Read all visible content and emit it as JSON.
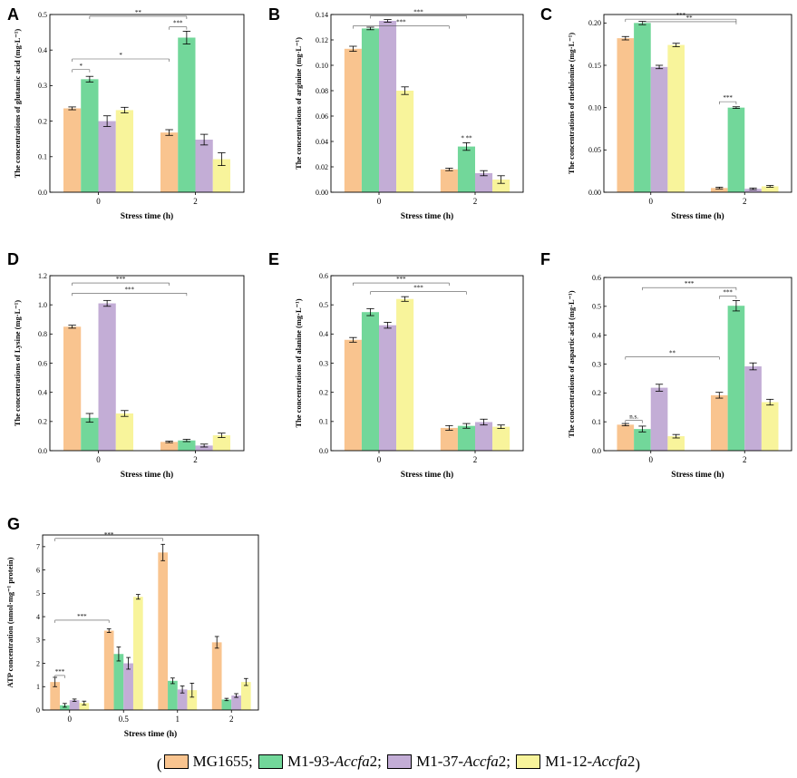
{
  "colors": {
    "MG1655": "#F9C48F",
    "M1-93-Accfa2": "#72D79A",
    "M1-37-Accfa2": "#C3ADD6",
    "M1-12-Accfa2": "#F8F49B"
  },
  "legend": {
    "open": "(",
    "close": ")",
    "items": [
      {
        "name": "MG1655",
        "plain": "MG1655",
        "italic": "",
        "suffix": "",
        "sep": ";"
      },
      {
        "name": "M1-93-Accfa2",
        "plain": "M1-93-",
        "italic": "Accfa",
        "suffix": "2",
        "sep": ";"
      },
      {
        "name": "M1-37-Accfa2",
        "plain": "M1-37-",
        "italic": "Accfa",
        "suffix": "2",
        "sep": ";"
      },
      {
        "name": "M1-12-Accfa2",
        "plain": "M1-12-",
        "italic": "Accfa",
        "suffix": "2",
        "sep": ""
      }
    ]
  },
  "chart_data": [
    {
      "panel": "A",
      "type": "bar",
      "ylabel": "The concentrations of glutamic acid (mg·L⁻¹)",
      "xlabel": "Stress time (h)",
      "categories": [
        "0",
        "2"
      ],
      "ylim": [
        0,
        0.5
      ],
      "yticks": [
        0.0,
        0.1,
        0.2,
        0.3,
        0.4,
        0.5
      ],
      "tick_decimals": 1,
      "series": [
        {
          "name": "MG1655",
          "values": [
            0.236,
            0.168
          ],
          "errors": [
            0.004,
            0.008
          ]
        },
        {
          "name": "M1-93-Accfa2",
          "values": [
            0.318,
            0.435
          ],
          "errors": [
            0.008,
            0.018
          ]
        },
        {
          "name": "M1-37-Accfa2",
          "values": [
            0.2,
            0.148
          ],
          "errors": [
            0.015,
            0.015
          ]
        },
        {
          "name": "M1-12-Accfa2",
          "values": [
            0.231,
            0.093
          ],
          "errors": [
            0.008,
            0.018
          ]
        }
      ],
      "annotations": [
        {
          "text": "*",
          "from": [
            0,
            0
          ],
          "to": [
            0,
            1
          ],
          "level": 0.345
        },
        {
          "text": "*",
          "from": [
            0,
            0
          ],
          "to": [
            1,
            0
          ],
          "level": 0.375
        },
        {
          "text": "***",
          "from": [
            1,
            0
          ],
          "to": [
            1,
            1
          ],
          "level": 0.465
        },
        {
          "text": "**",
          "from": [
            0,
            1
          ],
          "to": [
            1,
            1
          ],
          "level": 0.495
        }
      ]
    },
    {
      "panel": "B",
      "type": "bar",
      "ylabel": "The concentrations of arginine (mg·L⁻¹)",
      "xlabel": "Stress time (h)",
      "categories": [
        "0",
        "2"
      ],
      "ylim": [
        0,
        0.14
      ],
      "yticks": [
        0.0,
        0.02,
        0.04,
        0.06,
        0.08,
        0.1,
        0.12,
        0.14
      ],
      "tick_decimals": 2,
      "series": [
        {
          "name": "MG1655",
          "values": [
            0.113,
            0.018
          ],
          "errors": [
            0.002,
            0.001
          ]
        },
        {
          "name": "M1-93-Accfa2",
          "values": [
            0.129,
            0.036
          ],
          "errors": [
            0.001,
            0.003
          ]
        },
        {
          "name": "M1-37-Accfa2",
          "values": [
            0.135,
            0.015
          ],
          "errors": [
            0.001,
            0.002
          ]
        },
        {
          "name": "M1-12-Accfa2",
          "values": [
            0.08,
            0.01
          ],
          "errors": [
            0.003,
            0.003
          ]
        }
      ],
      "annotations": [
        {
          "text": "***",
          "from": [
            0,
            0
          ],
          "to": [
            1,
            0
          ],
          "level": 0.131
        },
        {
          "text": "***",
          "from": [
            0,
            1
          ],
          "to": [
            1,
            1
          ],
          "level": 0.139
        },
        {
          "text": "* **",
          "at": [
            1,
            1
          ],
          "level": 0.041
        }
      ]
    },
    {
      "panel": "C",
      "type": "bar",
      "ylabel": "The concentrations of methionine (mg·L⁻¹)",
      "xlabel": "Stress time (h)",
      "categories": [
        "0",
        "2"
      ],
      "ylim": [
        0,
        0.21
      ],
      "yticks": [
        0.0,
        0.05,
        0.1,
        0.15,
        0.2
      ],
      "tick_decimals": 2,
      "series": [
        {
          "name": "MG1655",
          "values": [
            0.182,
            0.005
          ],
          "errors": [
            0.002,
            0.001
          ]
        },
        {
          "name": "M1-93-Accfa2",
          "values": [
            0.2,
            0.1
          ],
          "errors": [
            0.002,
            0.001
          ]
        },
        {
          "name": "M1-37-Accfa2",
          "values": [
            0.148,
            0.004
          ],
          "errors": [
            0.002,
            0.001
          ]
        },
        {
          "name": "M1-12-Accfa2",
          "values": [
            0.174,
            0.007
          ],
          "errors": [
            0.002,
            0.001
          ]
        }
      ],
      "annotations": [
        {
          "text": "***",
          "from": [
            0,
            0
          ],
          "to": [
            1,
            1
          ],
          "level": 0.2045
        },
        {
          "text": "**",
          "from": [
            0,
            1
          ],
          "to": [
            1,
            1
          ],
          "level": 0.2015
        },
        {
          "text": "***",
          "from": [
            1,
            0
          ],
          "to": [
            1,
            1
          ],
          "level": 0.107
        }
      ]
    },
    {
      "panel": "D",
      "type": "bar",
      "ylabel": "The concentrations of Lysine (mg·L⁻¹)",
      "xlabel": "Stress time (h)",
      "categories": [
        "0",
        "2"
      ],
      "ylim": [
        0,
        1.2
      ],
      "yticks": [
        0.0,
        0.2,
        0.4,
        0.6,
        0.8,
        1.0,
        1.2
      ],
      "tick_decimals": 1,
      "series": [
        {
          "name": "MG1655",
          "values": [
            0.85,
            0.06
          ],
          "errors": [
            0.01,
            0.005
          ]
        },
        {
          "name": "M1-93-Accfa2",
          "values": [
            0.225,
            0.07
          ],
          "errors": [
            0.03,
            0.008
          ]
        },
        {
          "name": "M1-37-Accfa2",
          "values": [
            1.01,
            0.035
          ],
          "errors": [
            0.02,
            0.01
          ]
        },
        {
          "name": "M1-12-Accfa2",
          "values": [
            0.255,
            0.105
          ],
          "errors": [
            0.02,
            0.015
          ]
        }
      ],
      "annotations": [
        {
          "text": "***",
          "from": [
            0,
            0
          ],
          "to": [
            1,
            0
          ],
          "level": 1.15
        },
        {
          "text": "***",
          "from": [
            0,
            0
          ],
          "to": [
            1,
            1
          ],
          "level": 1.08
        }
      ]
    },
    {
      "panel": "E",
      "type": "bar",
      "ylabel": "The concentrations of alanine (mg·L⁻¹)",
      "xlabel": "Stress time (h)",
      "categories": [
        "0",
        "2"
      ],
      "ylim": [
        0,
        0.6
      ],
      "yticks": [
        0.0,
        0.1,
        0.2,
        0.3,
        0.4,
        0.5,
        0.6
      ],
      "tick_decimals": 1,
      "series": [
        {
          "name": "MG1655",
          "values": [
            0.38,
            0.078
          ],
          "errors": [
            0.008,
            0.008
          ]
        },
        {
          "name": "M1-93-Accfa2",
          "values": [
            0.475,
            0.085
          ],
          "errors": [
            0.012,
            0.008
          ]
        },
        {
          "name": "M1-37-Accfa2",
          "values": [
            0.43,
            0.098
          ],
          "errors": [
            0.01,
            0.01
          ]
        },
        {
          "name": "M1-12-Accfa2",
          "values": [
            0.52,
            0.082
          ],
          "errors": [
            0.008,
            0.006
          ]
        }
      ],
      "annotations": [
        {
          "text": "***",
          "from": [
            0,
            0
          ],
          "to": [
            1,
            0
          ],
          "level": 0.575
        },
        {
          "text": "***",
          "from": [
            0,
            1
          ],
          "to": [
            1,
            1
          ],
          "level": 0.545
        }
      ]
    },
    {
      "panel": "F",
      "type": "bar",
      "ylabel": "The concentrations of aspartic acid (mg·L⁻¹)",
      "xlabel": "Stress time (h)",
      "categories": [
        "0",
        "2"
      ],
      "ylim": [
        0,
        0.6
      ],
      "yticks": [
        0.0,
        0.1,
        0.2,
        0.3,
        0.4,
        0.5,
        0.6
      ],
      "tick_decimals": 1,
      "series": [
        {
          "name": "MG1655",
          "values": [
            0.09,
            0.192
          ],
          "errors": [
            0.004,
            0.01
          ]
        },
        {
          "name": "M1-93-Accfa2",
          "values": [
            0.075,
            0.502
          ],
          "errors": [
            0.01,
            0.018
          ]
        },
        {
          "name": "M1-37-Accfa2",
          "values": [
            0.218,
            0.292
          ],
          "errors": [
            0.012,
            0.012
          ]
        },
        {
          "name": "M1-12-Accfa2",
          "values": [
            0.05,
            0.168
          ],
          "errors": [
            0.006,
            0.01
          ]
        }
      ],
      "annotations": [
        {
          "text": "n.s.",
          "from": [
            0,
            0
          ],
          "to": [
            0,
            1
          ],
          "level": 0.105
        },
        {
          "text": "**",
          "from": [
            0,
            0
          ],
          "to": [
            1,
            0
          ],
          "level": 0.325
        },
        {
          "text": "***",
          "from": [
            1,
            0
          ],
          "to": [
            1,
            1
          ],
          "level": 0.535
        },
        {
          "text": "***",
          "from": [
            0,
            1
          ],
          "to": [
            1,
            1
          ],
          "level": 0.565
        }
      ]
    },
    {
      "panel": "G",
      "type": "bar",
      "ylabel": "ATP concentration (nmol·mg⁻¹ protein)",
      "xlabel": "Stress time (h)",
      "categories": [
        "0",
        "0.5",
        "1",
        "2"
      ],
      "ylim": [
        0,
        7.5
      ],
      "yticks": [
        0,
        1,
        2,
        3,
        4,
        5,
        6,
        7
      ],
      "tick_decimals": 0,
      "series": [
        {
          "name": "MG1655",
          "values": [
            1.2,
            3.4,
            6.75,
            2.9
          ],
          "errors": [
            0.2,
            0.08,
            0.35,
            0.25
          ]
        },
        {
          "name": "M1-93-Accfa2",
          "values": [
            0.2,
            2.4,
            1.25,
            0.45
          ],
          "errors": [
            0.08,
            0.3,
            0.12,
            0.05
          ]
        },
        {
          "name": "M1-37-Accfa2",
          "values": [
            0.42,
            2.0,
            0.88,
            0.62
          ],
          "errors": [
            0.05,
            0.25,
            0.15,
            0.08
          ]
        },
        {
          "name": "M1-12-Accfa2",
          "values": [
            0.3,
            4.85,
            0.85,
            1.2
          ],
          "errors": [
            0.08,
            0.1,
            0.3,
            0.15
          ]
        }
      ],
      "annotations": [
        {
          "text": "***",
          "from": [
            0,
            0
          ],
          "to": [
            0,
            1
          ],
          "level": 1.48
        },
        {
          "text": "***",
          "from": [
            0,
            0
          ],
          "to": [
            1,
            0
          ],
          "level": 3.85
        },
        {
          "text": "***",
          "from": [
            0,
            0
          ],
          "to": [
            2,
            0
          ],
          "level": 7.35
        }
      ]
    }
  ]
}
